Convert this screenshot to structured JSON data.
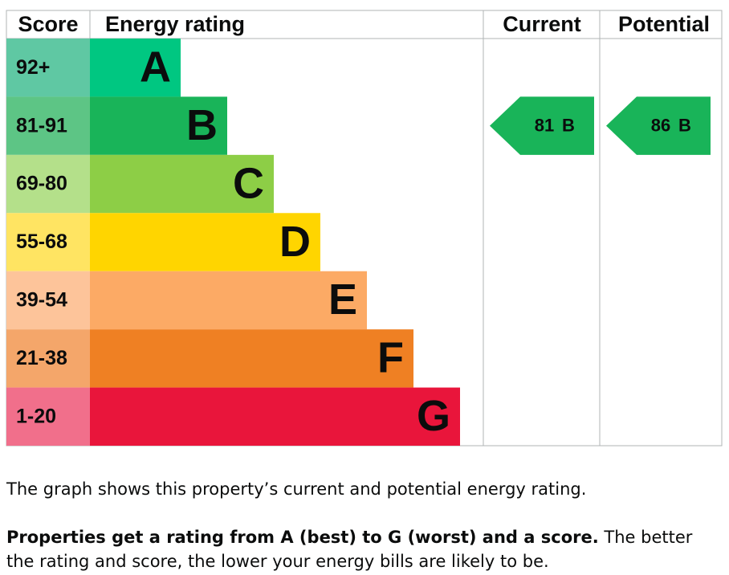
{
  "chart_data": {
    "type": "epc",
    "headers": [
      "Score",
      "Energy rating",
      "Current",
      "Potential"
    ],
    "bands": [
      {
        "score": "92+",
        "letter": "A",
        "color": "#00c781",
        "score_color": "#5fc8a3"
      },
      {
        "score": "81-91",
        "letter": "B",
        "color": "#19b459",
        "score_color": "#5dc585"
      },
      {
        "score": "69-80",
        "letter": "C",
        "color": "#8dce46",
        "score_color": "#b4e08a"
      },
      {
        "score": "55-68",
        "letter": "D",
        "color": "#ffd500",
        "score_color": "#ffe462"
      },
      {
        "score": "39-54",
        "letter": "E",
        "color": "#fcaa65",
        "score_color": "#fdc49a"
      },
      {
        "score": "21-38",
        "letter": "F",
        "color": "#ef8023",
        "score_color": "#f4a66a"
      },
      {
        "score": "1-20",
        "letter": "G",
        "color": "#e9153b",
        "score_color": "#f16f8b"
      }
    ],
    "current": {
      "value": 81,
      "letter": "B"
    },
    "potential": {
      "value": 86,
      "letter": "B"
    }
  },
  "text": {
    "summary": "The graph shows this property’s current and potential energy rating.",
    "bold": "Properties get a rating from A (best) to G (worst) and a score.",
    "rest": "The better the rating and score, the lower your energy bills are likely to be."
  }
}
